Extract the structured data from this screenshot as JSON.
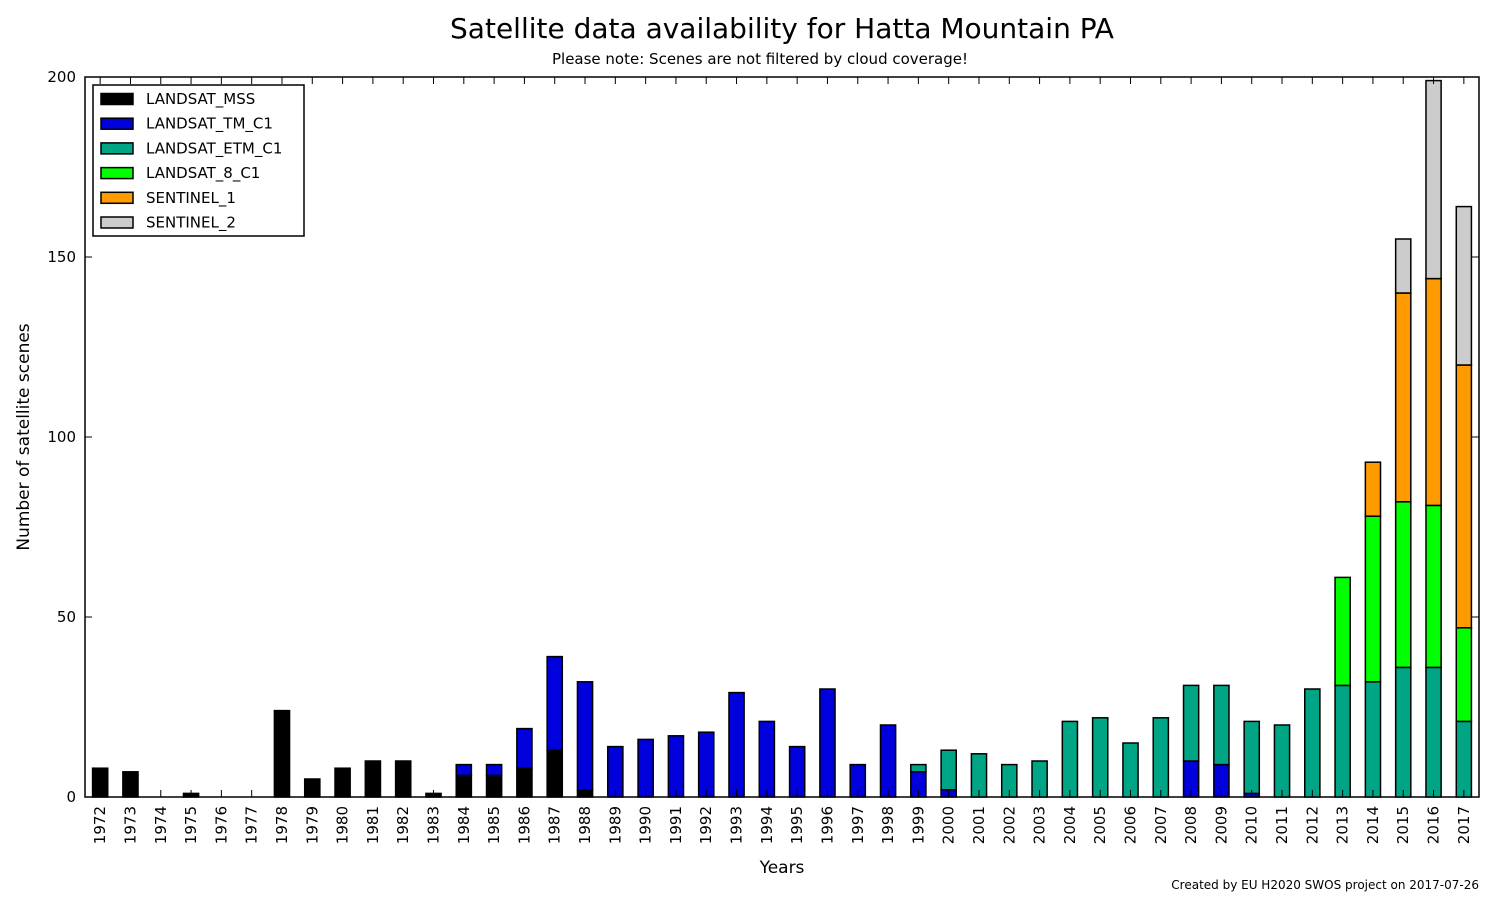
{
  "chart_data": {
    "type": "bar",
    "stacked": true,
    "title": "Satellite data availability for Hatta Mountain PA",
    "subtitle": "Please note: Scenes are not filtered by cloud coverage!",
    "xlabel": "Years",
    "ylabel": "Number of satellite scenes",
    "ylim": [
      0,
      200
    ],
    "yticks": [
      0,
      50,
      100,
      150,
      200
    ],
    "legend_position": "top-left",
    "credit": "Created by EU H2020 SWOS project on 2017-07-26",
    "categories": [
      "1972",
      "1973",
      "1974",
      "1975",
      "1976",
      "1977",
      "1978",
      "1979",
      "1980",
      "1981",
      "1982",
      "1983",
      "1984",
      "1985",
      "1986",
      "1987",
      "1988",
      "1989",
      "1990",
      "1991",
      "1992",
      "1993",
      "1994",
      "1995",
      "1996",
      "1997",
      "1998",
      "1999",
      "2000",
      "2001",
      "2002",
      "2003",
      "2004",
      "2005",
      "2006",
      "2007",
      "2008",
      "2009",
      "2010",
      "2011",
      "2012",
      "2013",
      "2014",
      "2015",
      "2016",
      "2017"
    ],
    "series": [
      {
        "name": "LANDSAT_MSS",
        "color": "#000000",
        "values": [
          8,
          7,
          0,
          1,
          0,
          0,
          24,
          5,
          8,
          10,
          10,
          1,
          6,
          6,
          8,
          13,
          2,
          0,
          0,
          0,
          0,
          0,
          0,
          0,
          0,
          0,
          0,
          0,
          0,
          0,
          0,
          0,
          0,
          0,
          0,
          0,
          0,
          0,
          0,
          0,
          0,
          0,
          0,
          0,
          0,
          0
        ]
      },
      {
        "name": "LANDSAT_TM_C1",
        "color": "#0000dd",
        "values": [
          0,
          0,
          0,
          0,
          0,
          0,
          0,
          0,
          0,
          0,
          0,
          0,
          3,
          3,
          11,
          26,
          30,
          14,
          16,
          17,
          18,
          29,
          21,
          14,
          30,
          9,
          20,
          7,
          2,
          0,
          0,
          0,
          0,
          0,
          0,
          0,
          10,
          9,
          1,
          0,
          0,
          0,
          0,
          0,
          0,
          0
        ]
      },
      {
        "name": "LANDSAT_ETM_C1",
        "color": "#00a585",
        "values": [
          0,
          0,
          0,
          0,
          0,
          0,
          0,
          0,
          0,
          0,
          0,
          0,
          0,
          0,
          0,
          0,
          0,
          0,
          0,
          0,
          0,
          0,
          0,
          0,
          0,
          0,
          0,
          2,
          11,
          12,
          9,
          10,
          21,
          22,
          15,
          22,
          21,
          22,
          20,
          20,
          30,
          31,
          32,
          36,
          36,
          21
        ]
      },
      {
        "name": "LANDSAT_8_C1",
        "color": "#00ff00",
        "values": [
          0,
          0,
          0,
          0,
          0,
          0,
          0,
          0,
          0,
          0,
          0,
          0,
          0,
          0,
          0,
          0,
          0,
          0,
          0,
          0,
          0,
          0,
          0,
          0,
          0,
          0,
          0,
          0,
          0,
          0,
          0,
          0,
          0,
          0,
          0,
          0,
          0,
          0,
          0,
          0,
          0,
          30,
          46,
          46,
          45,
          26
        ]
      },
      {
        "name": "SENTINEL_1",
        "color": "#ff9a00",
        "values": [
          0,
          0,
          0,
          0,
          0,
          0,
          0,
          0,
          0,
          0,
          0,
          0,
          0,
          0,
          0,
          0,
          0,
          0,
          0,
          0,
          0,
          0,
          0,
          0,
          0,
          0,
          0,
          0,
          0,
          0,
          0,
          0,
          0,
          0,
          0,
          0,
          0,
          0,
          0,
          0,
          0,
          0,
          15,
          58,
          63,
          73
        ]
      },
      {
        "name": "SENTINEL_2",
        "color": "#cccccc",
        "values": [
          0,
          0,
          0,
          0,
          0,
          0,
          0,
          0,
          0,
          0,
          0,
          0,
          0,
          0,
          0,
          0,
          0,
          0,
          0,
          0,
          0,
          0,
          0,
          0,
          0,
          0,
          0,
          0,
          0,
          0,
          0,
          0,
          0,
          0,
          0,
          0,
          0,
          0,
          0,
          0,
          0,
          0,
          0,
          15,
          55,
          44
        ]
      }
    ]
  }
}
